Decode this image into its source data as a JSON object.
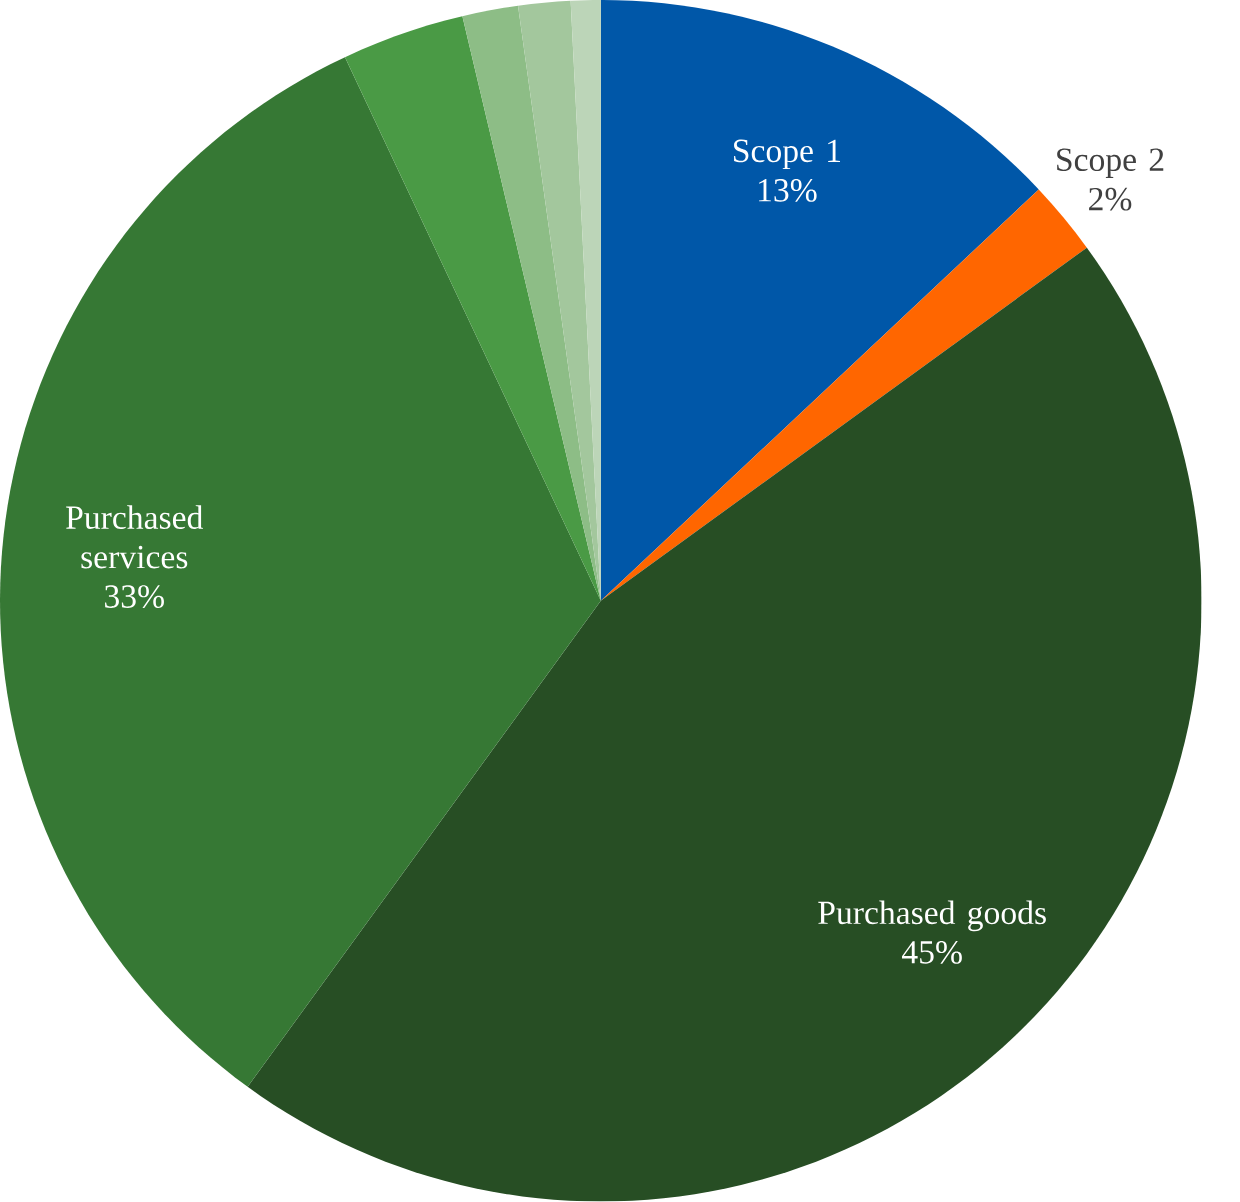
{
  "chart_data": {
    "type": "pie",
    "categories": [
      "Scope 1",
      "Scope 2",
      "Purchased goods",
      "Purchased services",
      null,
      null,
      null,
      null
    ],
    "values": [
      13,
      2,
      45,
      33,
      3.3,
      1.5,
      1.4,
      0.8
    ],
    "value_labels": [
      "13%",
      "2%",
      "45%",
      "33%",
      null,
      null,
      null,
      null
    ],
    "colors": [
      "#0057a8",
      "#ff6600",
      "#274e24",
      "#367834",
      "#4a9a45",
      "#8dbd86",
      "#a3c79d",
      "#bcd5b8"
    ]
  }
}
